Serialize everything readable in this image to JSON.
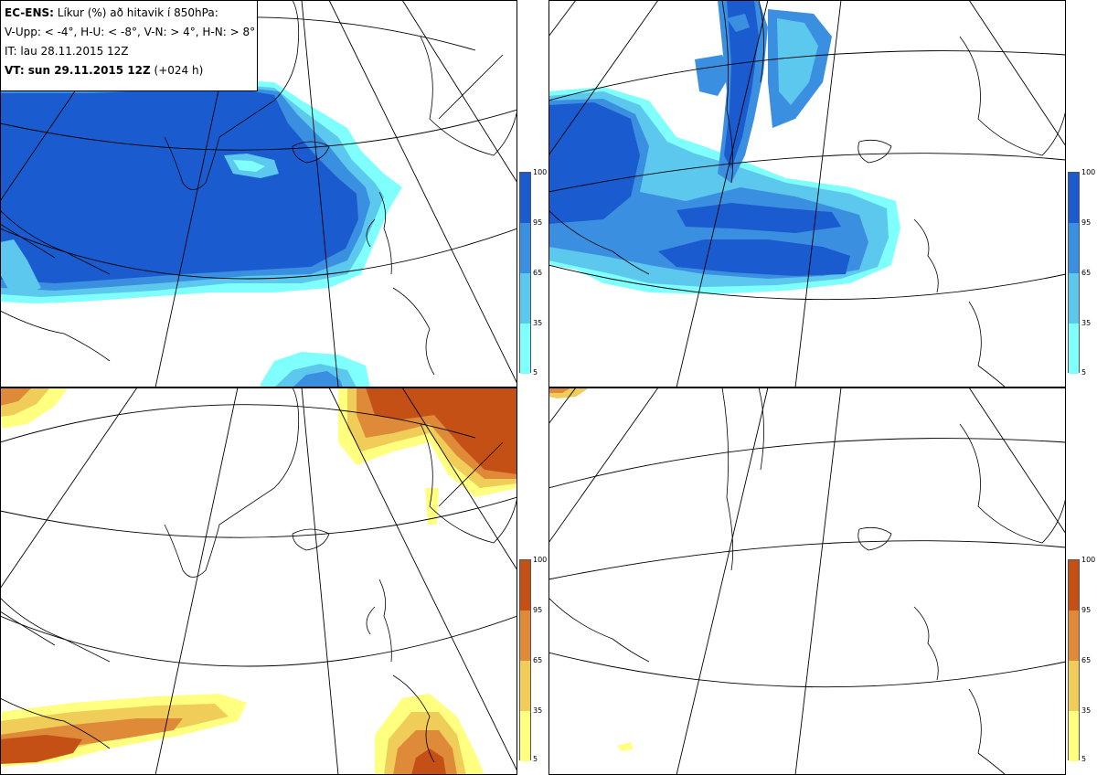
{
  "header": {
    "model": "EC-ENS:",
    "title": " Líkur (%) að hitavik í 850hPa:",
    "thresholds": "V-Upp: < -4°, H-U: < -8°, V-N: > 4°, H-N: > 8°",
    "initial_time": "IT: lau 28.11.2015 12Z",
    "valid_prefix": "VT: sun 29.11.2015 12Z",
    "valid_suffix": " (+024 h)"
  },
  "colorbars": {
    "cold": {
      "ticks": [
        "100",
        "95",
        "65",
        "35",
        "5"
      ],
      "colors": [
        "#1a5cd0",
        "#3b8fe0",
        "#5cc8ee",
        "#80ffff"
      ]
    },
    "warm": {
      "ticks": [
        "100",
        "95",
        "65",
        "35",
        "5"
      ],
      "colors": [
        "#c45016",
        "#de8a38",
        "#f0cc58",
        "#ffff80"
      ]
    }
  },
  "panels": [
    {
      "id": "v-upp",
      "label": "V-Upp: < -4°",
      "colorbar": "cold"
    },
    {
      "id": "h-upp",
      "label": "H-U: < -8°",
      "colorbar": "cold"
    },
    {
      "id": "v-nidur",
      "label": "V-N: > 4°",
      "colorbar": "warm"
    },
    {
      "id": "h-nidur",
      "label": "H-N: > 8°",
      "colorbar": "warm"
    }
  ]
}
